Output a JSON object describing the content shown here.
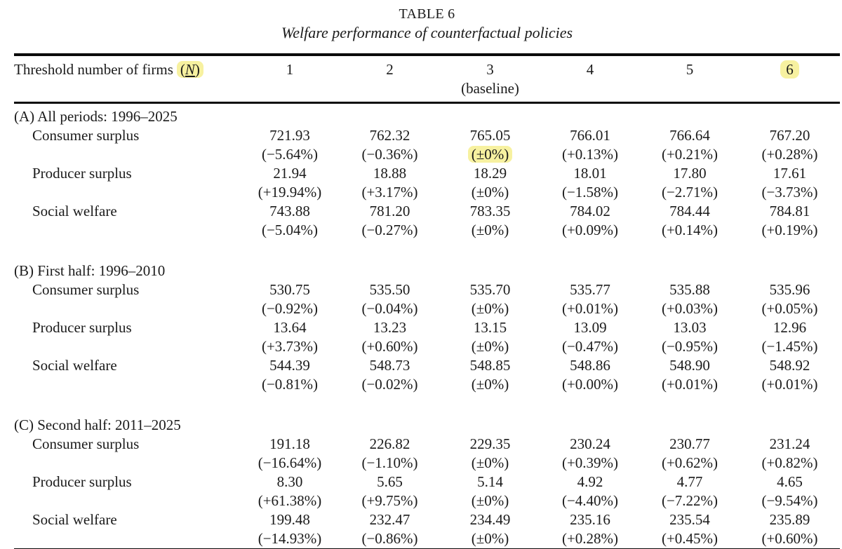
{
  "table": {
    "title": "TABLE 6",
    "subtitle": "Welfare performance of counterfactual policies",
    "highlight_color": "#f7f1a0",
    "header": {
      "label": "Threshold number of firms",
      "n_open": "(",
      "n": "N",
      "n_close": ")",
      "columns": [
        "1",
        "2",
        "3",
        "4",
        "5",
        "6"
      ],
      "baseline_note": "(baseline)",
      "baseline_col_index": 2,
      "highlighted_col_index": 5
    },
    "sections": [
      {
        "label": "(A) All periods: 1996–2025",
        "rows": [
          {
            "label": "Consumer surplus",
            "values": [
              "721.93",
              "762.32",
              "765.05",
              "766.01",
              "766.64",
              "767.20"
            ],
            "pcts": [
              "(−5.64%)",
              "(−0.36%)",
              "(±0%)",
              "(+0.13%)",
              "(+0.21%)",
              "(+0.28%)"
            ],
            "pct_highlight_col": 2
          },
          {
            "label": "Producer surplus",
            "values": [
              "21.94",
              "18.88",
              "18.29",
              "18.01",
              "17.80",
              "17.61"
            ],
            "pcts": [
              "(+19.94%)",
              "(+3.17%)",
              "(±0%)",
              "(−1.58%)",
              "(−2.71%)",
              "(−3.73%)"
            ]
          },
          {
            "label": "Social welfare",
            "values": [
              "743.88",
              "781.20",
              "783.35",
              "784.02",
              "784.44",
              "784.81"
            ],
            "pcts": [
              "(−5.04%)",
              "(−0.27%)",
              "(±0%)",
              "(+0.09%)",
              "(+0.14%)",
              "(+0.19%)"
            ]
          }
        ]
      },
      {
        "label": "(B) First half: 1996–2010",
        "rows": [
          {
            "label": "Consumer surplus",
            "values": [
              "530.75",
              "535.50",
              "535.70",
              "535.77",
              "535.88",
              "535.96"
            ],
            "pcts": [
              "(−0.92%)",
              "(−0.04%)",
              "(±0%)",
              "(+0.01%)",
              "(+0.03%)",
              "(+0.05%)"
            ]
          },
          {
            "label": "Producer surplus",
            "values": [
              "13.64",
              "13.23",
              "13.15",
              "13.09",
              "13.03",
              "12.96"
            ],
            "pcts": [
              "(+3.73%)",
              "(+0.60%)",
              "(±0%)",
              "(−0.47%)",
              "(−0.95%)",
              "(−1.45%)"
            ]
          },
          {
            "label": "Social welfare",
            "values": [
              "544.39",
              "548.73",
              "548.85",
              "548.86",
              "548.90",
              "548.92"
            ],
            "pcts": [
              "(−0.81%)",
              "(−0.02%)",
              "(±0%)",
              "(+0.00%)",
              "(+0.01%)",
              "(+0.01%)"
            ]
          }
        ]
      },
      {
        "label": "(C) Second half: 2011–2025",
        "rows": [
          {
            "label": "Consumer surplus",
            "values": [
              "191.18",
              "226.82",
              "229.35",
              "230.24",
              "230.77",
              "231.24"
            ],
            "pcts": [
              "(−16.64%)",
              "(−1.10%)",
              "(±0%)",
              "(+0.39%)",
              "(+0.62%)",
              "(+0.82%)"
            ]
          },
          {
            "label": "Producer surplus",
            "values": [
              "8.30",
              "5.65",
              "5.14",
              "4.92",
              "4.77",
              "4.65"
            ],
            "pcts": [
              "(+61.38%)",
              "(+9.75%)",
              "(±0%)",
              "(−4.40%)",
              "(−7.22%)",
              "(−9.54%)"
            ]
          },
          {
            "label": "Social welfare",
            "values": [
              "199.48",
              "232.47",
              "234.49",
              "235.16",
              "235.54",
              "235.89"
            ],
            "pcts": [
              "(−14.93%)",
              "(−0.86%)",
              "(±0%)",
              "(+0.28%)",
              "(+0.45%)",
              "(+0.60%)"
            ]
          }
        ]
      }
    ]
  }
}
